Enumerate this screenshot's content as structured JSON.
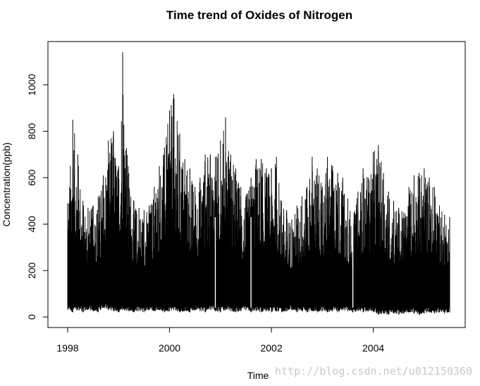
{
  "chart_data": {
    "type": "line",
    "title": "Time trend of Oxides of Nitrogen",
    "xlabel": "Time",
    "ylabel": "Concentration(ppb)",
    "xlim": [
      1998.0,
      2005.5
    ],
    "ylim": [
      0,
      1150
    ],
    "x_ticks": [
      1998,
      2000,
      2002,
      2004
    ],
    "y_ticks": [
      0,
      200,
      400,
      600,
      800,
      1000
    ],
    "grid": false,
    "legend": "none",
    "line_color": "#000000",
    "series": [
      {
        "x": [
          1998.0,
          1998.1,
          1998.2,
          1998.3,
          1998.4,
          1998.5,
          1998.6,
          1998.7,
          1998.8,
          1998.9,
          1999.0,
          1999.08,
          1999.2,
          1999.3,
          1999.4,
          1999.5,
          1999.6,
          1999.7,
          1999.8,
          1999.9,
          2000.0,
          2000.08,
          2000.2,
          2000.3,
          2000.4,
          2000.5,
          2000.6,
          2000.7,
          2000.8,
          2000.9,
          2001.0,
          2001.1,
          2001.2,
          2001.3,
          2001.4,
          2001.5,
          2001.6,
          2001.7,
          2001.8,
          2001.9,
          2002.0,
          2002.1,
          2002.2,
          2002.3,
          2002.4,
          2002.5,
          2002.6,
          2002.7,
          2002.8,
          2002.9,
          2003.0,
          2003.1,
          2003.2,
          2003.3,
          2003.4,
          2003.5,
          2003.6,
          2003.7,
          2003.8,
          2003.9,
          2004.0,
          2004.1,
          2004.2,
          2004.3,
          2004.4,
          2004.5,
          2004.6,
          2004.7,
          2004.8,
          2004.9,
          2005.0,
          2005.1,
          2005.2,
          2005.3,
          2005.4,
          2005.5
        ],
        "max": [
          490,
          850,
          700,
          500,
          470,
          480,
          520,
          610,
          760,
          800,
          650,
          1140,
          620,
          500,
          470,
          460,
          480,
          560,
          650,
          730,
          890,
          960,
          790,
          680,
          640,
          560,
          600,
          700,
          700,
          690,
          760,
          860,
          700,
          640,
          560,
          520,
          600,
          680,
          680,
          640,
          640,
          690,
          500,
          460,
          420,
          480,
          520,
          560,
          690,
          640,
          560,
          690,
          650,
          620,
          600,
          510,
          430,
          540,
          640,
          600,
          710,
          740,
          620,
          540,
          500,
          470,
          450,
          560,
          610,
          620,
          640,
          600,
          560,
          480,
          440,
          430
        ],
        "min": [
          30,
          20,
          30,
          20,
          30,
          25,
          20,
          40,
          30,
          25,
          20,
          30,
          25,
          20,
          25,
          20,
          30,
          25,
          30,
          20,
          25,
          30,
          20,
          25,
          20,
          30,
          25,
          20,
          30,
          25,
          20,
          30,
          25,
          20,
          25,
          30,
          20,
          25,
          20,
          25,
          20,
          25,
          20,
          25,
          30,
          20,
          25,
          20,
          25,
          20,
          25,
          20,
          25,
          20,
          30,
          25,
          20,
          25,
          20,
          25,
          20,
          10,
          15,
          10,
          15,
          10,
          15,
          20,
          15,
          10,
          15,
          20,
          15,
          20,
          15,
          20
        ]
      }
    ]
  },
  "watermark": "http://blog.csdn.net/u012150360"
}
